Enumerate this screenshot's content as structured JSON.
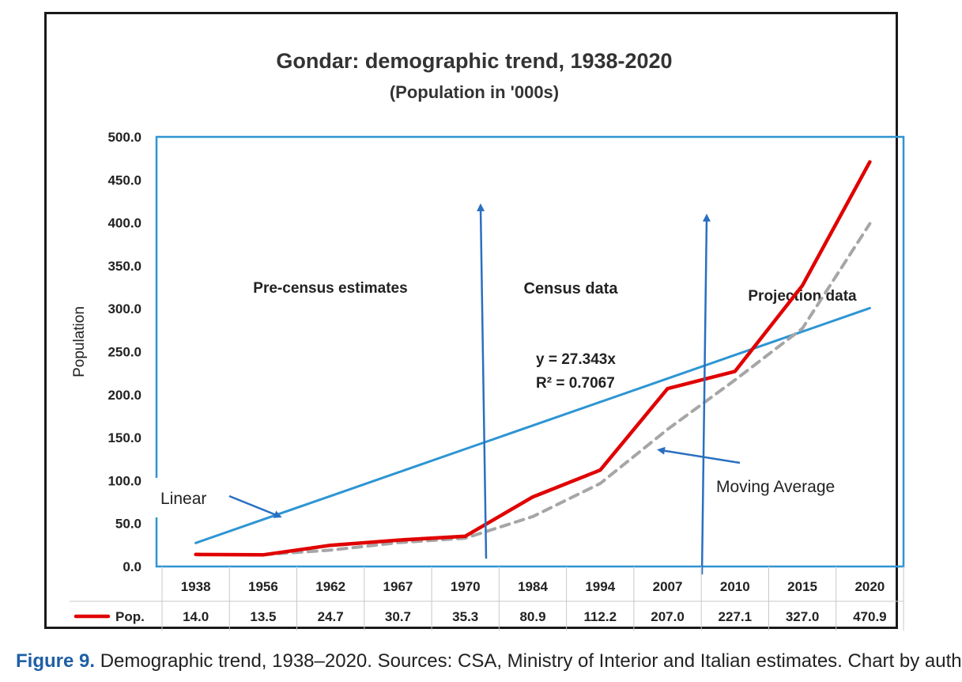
{
  "chart_data": {
    "type": "line",
    "title": "Gondar:  demographic trend, 1938-2020",
    "subtitle": "(Population in '000s)",
    "xlabel": "",
    "ylabel": "Population",
    "ylim": [
      0,
      500
    ],
    "yticks": [
      "0.0",
      "50.0",
      "100.0",
      "150.0",
      "200.0",
      "250.0",
      "300.0",
      "350.0",
      "400.0",
      "450.0",
      "500.0"
    ],
    "categories": [
      "1938",
      "1956",
      "1962",
      "1967",
      "1970",
      "1984",
      "1994",
      "2007",
      "2010",
      "2015",
      "2020"
    ],
    "series": [
      {
        "name": "Pop.",
        "color": "#e00000",
        "values": [
          14.0,
          13.5,
          24.7,
          30.7,
          35.3,
          80.9,
          112.2,
          207.0,
          227.1,
          327.0,
          470.9
        ],
        "labels": [
          "14.0",
          "13.5",
          "24.7",
          "30.7",
          "35.3",
          "80.9",
          "112.2",
          "207.0",
          "227.1",
          "327.0",
          "470.9"
        ]
      },
      {
        "name": "Moving Average",
        "color": "#a6a6a6",
        "values": [
          null,
          13.75,
          19.1,
          27.7,
          33.0,
          58.1,
          96.55,
          159.6,
          217.05,
          277.05,
          398.95
        ]
      },
      {
        "name": "Linear",
        "color": "#2e95d3",
        "values": [
          27.343,
          54.686,
          82.029,
          109.372,
          136.715,
          164.058,
          191.401,
          218.744,
          246.087,
          273.43,
          300.773
        ]
      }
    ],
    "annotations": {
      "pre_census": "Pre-census estimates",
      "census": "Census  data",
      "projection": "Projection  data",
      "equation": "y = 27.343x",
      "r_squared": "R² = 0.7067",
      "linear_label": "Linear",
      "moving_average_label": "Moving Average"
    },
    "table_row_label": "Pop."
  },
  "caption": {
    "figure_label": "Figure 9.",
    "text": " Demographic trend, 1938–2020. Sources: CSA, Ministry of Interior and Italian estimates. Chart by auth"
  },
  "colors": {
    "plot_border": "#2e95d3",
    "arrow": "#2a6fc0",
    "grid": "#d9d9d9"
  }
}
